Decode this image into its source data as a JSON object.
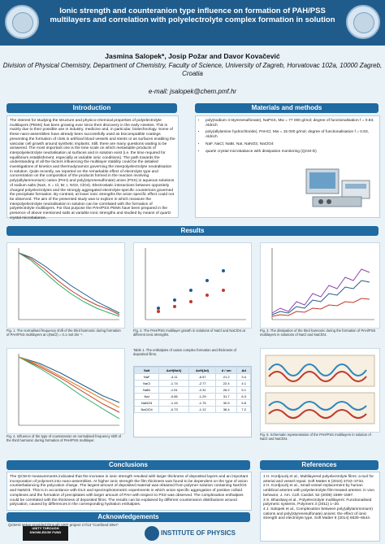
{
  "header": {
    "title": "Ionic strength and counteranion type influence on formation of PAH/PSS multilayers and correlation with polyelectrolyte complex formation in solution",
    "authors": "Jasmina Salopek*, Josip Požar and Davor Kovačević",
    "affiliation": "Division of Physical Chemistry, Department of Chemistry, Faculty of Science, University of Zagreb, Horvatovac 102a, 10000 Zagreb, Croatia",
    "email": "e-mail: jsalopek@chem.pmf.hr"
  },
  "sections": {
    "introduction": "Introduction",
    "materials": "Materials and methods",
    "results": "Results",
    "conclusions": "Conclusions",
    "references": "References",
    "acknowledgements": "Acknowledgements"
  },
  "intro_text": "The interest for studying the structure and physico-chemical properties of polyelectrolyte multilayers (PEMs) has been growing ever since their discovery in the early nineties. This is mainly due to their possible use in industry, medicine and, in particular, biotechnology. Some of these nano-assemblies have already been successfully used as biocompatible coatings preventing the formation of clots in artificial blood vessels and stents or as surfaces enabling the vascular cell growth around synthetic implants. Still, there are many questions waiting to be answered. The most important one is the time scale on which metastable products of interpolyelectrolyte neutralisation at surfaces and in solution exist (i.e. the time required for equilibrium establishment, especially at variable ionic conditions). The path towards the understanding of all the factors influencing the multilayer stability could be the detailed investigations of kinetics and thermodynamics governing the interpolyelectrolyte neutralisation in solution. Quite recently, we reported on the remarkable effect of electrolyte type and concentration on the composition of the products formed in the reaction involving poly(allylammonium) cation (PAH) and poly(styrenesulfonate) anion (PSS) in aqueous solutions of sodium salts (NaX, X = Cl, Br, I, NO3, ClO4). Electrostatic interactions between oppositely charged polyelectrolytes and the strongly aggregated electrolyte-specific counterions governed the precipitate formation. By contrast, at lower ionic strengths the anion specific effect could not be observed. The aim of the presented study was to explore in which measure the interpolyelectrolyte neutralisation in solution can be correlated with the formation of polyelectrolyte multilayers. For that purpose the PAH/PSS PEMs have been prepared in the presence of above mentioned salts at variable ionic strengths and studied by means of quartz crystal microbalance.",
  "methods": [
    "poly(sodium 4-styrenesulfonate), NaPSS, Mw = 77 000 g/mol; degree of functionalisation f = 0.83, Aldrich",
    "poly(allylamine hydrochloride), PAHCl, Mw = 15 000 g/mol; degree of functionalisation f = 0.83, Aldrich",
    "NaF, NaCl, NaBr, NaI, NaNO3, NaClO4",
    "quartz crystal microbalance with dissipation monitoring (QCM-D)"
  ],
  "captions": {
    "fig1": "Fig. 1. The normalised frequency shift of the third harmonic during formation of PAH/PSS multilayers at c(NaCl) = 0.1 mol dm⁻³.",
    "fig2": "Fig. 2. The PAH/PSS multilayer growth in solutions of NaCl and NaClO4 at different ionic strengths.",
    "fig3": "Fig. 3. The dissipation of the third harmonic during the formation of PAH/PSS multilayers in solutions of NaCl and NaClO4.",
    "fig4": "Fig. 4. Influence of the type of counteranion on normalised frequency shift of the third harmonic during formation of PAH/PSS multilayer.",
    "fig5": "Table 1. The enthalpies of cation complex formation and thickness of deposited films.",
    "fig6": "Fig. 5. Schematic representation of the PAH/PSS multilayers in solution of NaCl and NaClO4."
  },
  "table": {
    "headers": [
      "Salt",
      "ΔcH(NaX)",
      "ΔcH(Ad)",
      "d / nm",
      "Δd"
    ],
    "rows": [
      [
        "NaF",
        "-4.11",
        "-6.57",
        "21.2",
        "3.4"
      ],
      [
        "NaCl",
        "-1.74",
        "-2.77",
        "22.4",
        "4.1"
      ],
      [
        "NaBr",
        "-1.51",
        "-2.31",
        "26.2",
        "5.1"
      ],
      [
        "NaI",
        "-0.85",
        "-1.29",
        "31.7",
        "6.3"
      ],
      [
        "NaNO3",
        "-1.15",
        "-1.75",
        "30.5",
        "5.8"
      ],
      [
        "NaClO4",
        "-0.73",
        "-1.12",
        "36.4",
        "7.2"
      ]
    ]
  },
  "conclusions_text": "The QCM-D measurements indicated that the increase in ionic strength resulted with larger thickness of deposited layers and an important incorporation of polymers into nano-assemblies. At higher ionic strength the film thickness was found to be dependent on the type of anion counterbalancing the polycation charge. The largest amount of deposited material was obtained from polymer solution containing NaClO4 and NaNO3. This is in accordance with DLS and spectrophotometric experiments in which anion specific aggregation of positive colloid complexes and the formation of precipitates with larger amount of PAH with respect to PSS was observed. The complexation enthalpies could be correlated with the thickness of deposited films. The results can be explained by different counteranion distributions around polycation, caused by differences in the corresponding hydration enthalpies.",
  "references": [
    "1 H. Kordjouzij et al., Multilayered polyelectrolyte films: a tool for arterial and vessel repair, Soft Matter 6 (2010) 3722–3734.",
    "2 H. Kordjouzij et al., Small vessel replacement by human umbilical arteries with polyelectrolyte film-treated arteries: in vivo behavior, J. Am. Coll. Cardiol. 52 (2008) 1589–1597.",
    "3 S. Bhardwaj et al., Polyelectrolyte multilayers: Functionalised polymeric systems, Polymers 3 (2011) 1–20.",
    "4 J. Salopek et al., Complexation between poly(allylammonium) cations and poly(styrenesulfonate) anions: the effect of ionic strength and electrolyte type, Soft Matter 8 (2014) 6530–6544."
  ],
  "ack_text": "QCM-D setup provided through UKF project 17/13 \"Confined DNA\"",
  "logos": {
    "unity_text": "UNITY THROUGH KNOWLEDGE FUND",
    "iop_text": "INSTITUTE OF PHYSICS"
  }
}
